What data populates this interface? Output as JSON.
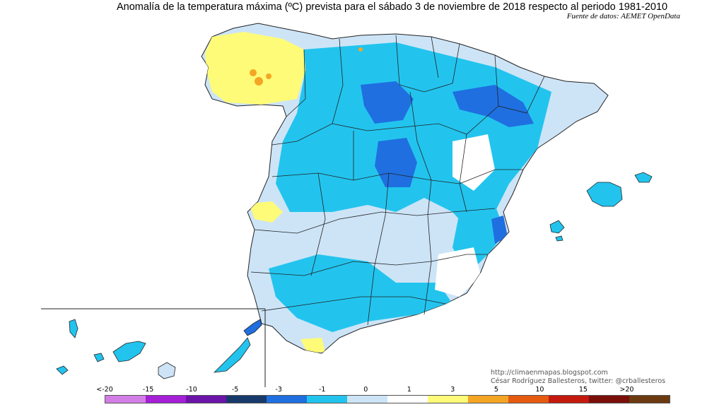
{
  "map": {
    "title": "Anomalía de la temperatura máxima (ºC) prevista para el sábado 3 de noviembre de 2018 respecto al periodo 1981-2010",
    "source": "Fuente de datos: AEMET OpenData",
    "credit_url": "http://climaenmapas.blogspot.com",
    "credit_author": "César Rodríguez Ballesteros, twitter: @crballesteros",
    "regions": [
      "Peninsula",
      "Balearic Islands",
      "Canary Islands"
    ]
  },
  "legend": {
    "labels": [
      "<-20",
      "-15",
      "-10",
      "-5",
      "-3",
      "-1",
      "0",
      "1",
      "3",
      "5",
      "10",
      "15",
      ">20"
    ],
    "colors": [
      "#d27ee6",
      "#a51fd6",
      "#6a14a8",
      "#173a6b",
      "#1f6fe0",
      "#22c4ee",
      "#cde4f7",
      "#ffffff",
      "#fdfb78",
      "#f5a524",
      "#e65a10",
      "#c41a0e",
      "#7a0f0a",
      "#6b3a10"
    ]
  }
}
